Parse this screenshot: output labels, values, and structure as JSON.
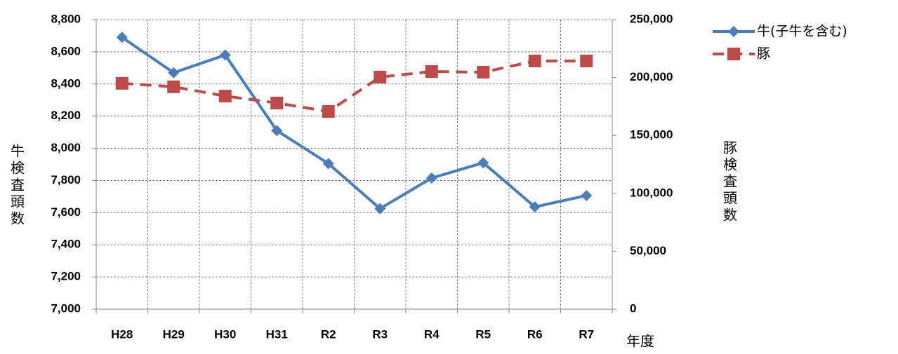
{
  "chart_data": {
    "type": "line",
    "categories": [
      "H28",
      "H29",
      "H30",
      "H31",
      "R2",
      "R3",
      "R4",
      "R5",
      "R6",
      "R7"
    ],
    "series": [
      {
        "name": "牛(子牛を含む)",
        "color": "#4a7ebb",
        "marker": "diamond",
        "dashed": false,
        "values": [
          8690,
          8470,
          8580,
          8110,
          7905,
          7625,
          7815,
          7910,
          7636,
          7706
        ]
      },
      {
        "name": "豚",
        "color": "#be4b48",
        "marker": "square",
        "dashed": true,
        "axis": "y2",
        "values": [
          195000,
          192000,
          184000,
          178000,
          170700,
          200400,
          205200,
          204600,
          214300,
          214300
        ]
      }
    ],
    "ylim": [
      7000,
      8800
    ],
    "yticks": [
      {
        "value": 7000,
        "label": "7,000"
      },
      {
        "value": 7200,
        "label": "7,200"
      },
      {
        "value": 7400,
        "label": "7,400"
      },
      {
        "value": 7600,
        "label": "7,600"
      },
      {
        "value": 7800,
        "label": "7,800"
      },
      {
        "value": 8000,
        "label": "8,000"
      },
      {
        "value": 8200,
        "label": "8,200"
      },
      {
        "value": 8400,
        "label": "8,400"
      },
      {
        "value": 8600,
        "label": "8,600"
      },
      {
        "value": 8800,
        "label": "8,800"
      }
    ],
    "y2lim": [
      0,
      250000
    ],
    "y2ticks": [
      0,
      {
        "value": 50000,
        "label": "50,000"
      },
      {
        "value": 100000,
        "label": "100,000"
      },
      {
        "value": 150000,
        "label": "150,000"
      },
      {
        "value": 200000,
        "label": "200,000"
      },
      {
        "value": 250000,
        "label": "250,000"
      }
    ],
    "ylabel": "牛検査頭数",
    "y2label": "豚検査頭数",
    "xlabel": "年度",
    "grid": true,
    "legend": "top-right"
  }
}
